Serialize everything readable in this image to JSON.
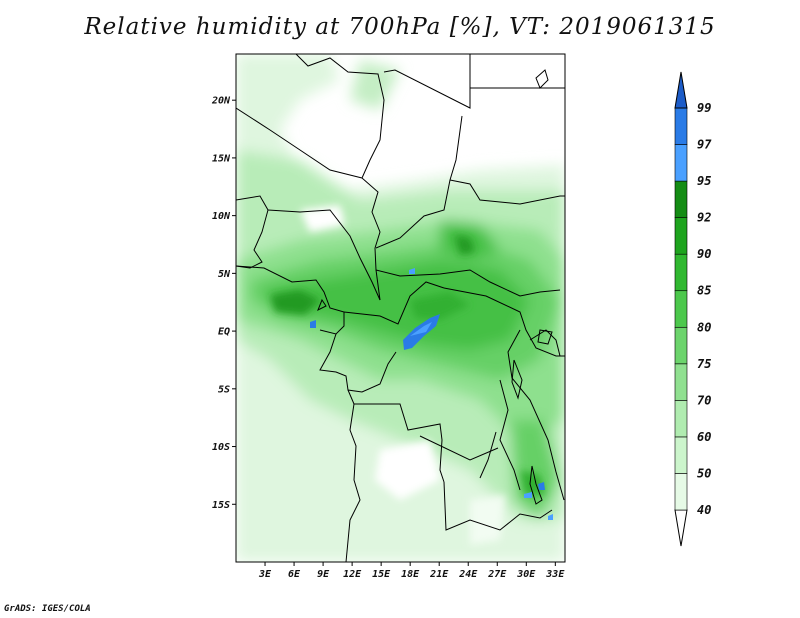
{
  "title": "Relative humidity at 700hPa [%], VT: 2019061315",
  "footer": "GrADS: IGES/COLA",
  "map": {
    "variable": "Relative humidity",
    "level": "700hPa",
    "units": "%",
    "valid_time": "2019061315",
    "lon_range": [
      0,
      34
    ],
    "lat_range": [
      -20,
      24
    ],
    "lat_ticks": [
      {
        "value": 20,
        "label": "20N"
      },
      {
        "value": 15,
        "label": "15N"
      },
      {
        "value": 10,
        "label": "10N"
      },
      {
        "value": 5,
        "label": "5N"
      },
      {
        "value": 0,
        "label": "EQ"
      },
      {
        "value": -5,
        "label": "5S"
      },
      {
        "value": -10,
        "label": "10S"
      },
      {
        "value": -15,
        "label": "15S"
      }
    ],
    "lon_ticks": [
      {
        "value": 3,
        "label": "3E"
      },
      {
        "value": 6,
        "label": "6E"
      },
      {
        "value": 9,
        "label": "9E"
      },
      {
        "value": 12,
        "label": "12E"
      },
      {
        "value": 15,
        "label": "15E"
      },
      {
        "value": 18,
        "label": "18E"
      },
      {
        "value": 21,
        "label": "21E"
      },
      {
        "value": 24,
        "label": "24E"
      },
      {
        "value": 27,
        "label": "27E"
      },
      {
        "value": 30,
        "label": "30E"
      },
      {
        "value": 33,
        "label": "33E"
      }
    ]
  },
  "colorbar": {
    "levels": [
      "40",
      "50",
      "60",
      "70",
      "75",
      "80",
      "85",
      "90",
      "92",
      "95",
      "97",
      "99"
    ],
    "colors": [
      "#ffffff",
      "#e6fae6",
      "#ccf5cc",
      "#b0ecb0",
      "#90e090",
      "#6cd46c",
      "#4cc84c",
      "#30b830",
      "#1ea41e",
      "#148c14",
      "#4aa0ff",
      "#2a7be6",
      "#1c5cc8"
    ]
  },
  "colors": {
    "border": "#000000",
    "background": "#ffffff"
  }
}
